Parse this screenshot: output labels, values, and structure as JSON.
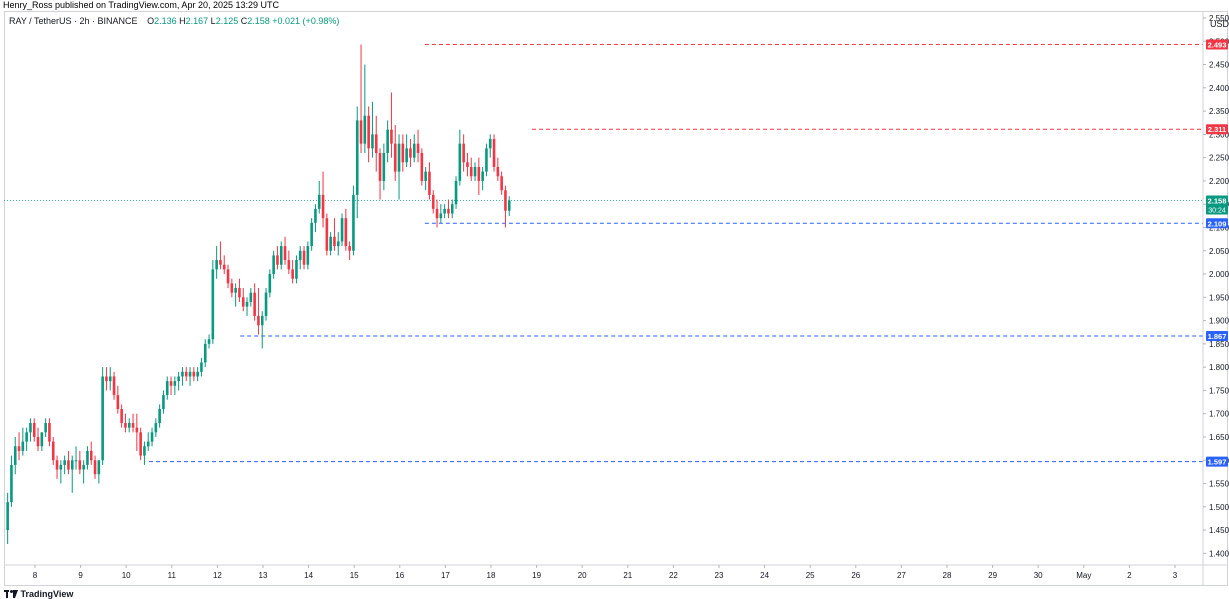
{
  "banner": {
    "text": "Henry_Ross published on TradingView.com, Apr 20, 2025 13:29 UTC"
  },
  "legend": {
    "symbol": "RAY / TetherUS · 2h · BINANCE",
    "o_label": "O",
    "o_value": "2.136",
    "h_label": "H",
    "h_value": "2.167",
    "l_label": "L",
    "l_value": "2.125",
    "c_label": "C",
    "c_value": "2.158",
    "change": "+0.021 (+0.98%)"
  },
  "price_scale": {
    "currency": "USDT"
  },
  "footer": {
    "brand": "TradingView",
    "logo_icon": "tradingview-logo-icon"
  },
  "colors": {
    "up": "#089981",
    "down": "#f23645",
    "support": "#2962ff",
    "resistance": "#f23645",
    "grid": "#d0d3da"
  },
  "chart_data": {
    "type": "candlestick",
    "title": "RAY / TetherUS · 2h · BINANCE",
    "ylim": [
      1.375,
      2.565
    ],
    "yticks": [
      "1.400",
      "1.450",
      "1.500",
      "1.550",
      "1.600",
      "1.650",
      "1.700",
      "1.750",
      "1.800",
      "1.850",
      "1.900",
      "1.950",
      "2.000",
      "2.050",
      "2.100",
      "2.150",
      "2.200",
      "2.250",
      "2.300",
      "2.350",
      "2.400",
      "2.450",
      "2.500",
      "2.550"
    ],
    "xticks": [
      {
        "label": "8",
        "day": 8
      },
      {
        "label": "9",
        "day": 9
      },
      {
        "label": "10",
        "day": 10
      },
      {
        "label": "11",
        "day": 11
      },
      {
        "label": "12",
        "day": 12
      },
      {
        "label": "13",
        "day": 13
      },
      {
        "label": "14",
        "day": 14
      },
      {
        "label": "15",
        "day": 15
      },
      {
        "label": "16",
        "day": 16
      },
      {
        "label": "17",
        "day": 17
      },
      {
        "label": "18",
        "day": 18
      },
      {
        "label": "19",
        "day": 19
      },
      {
        "label": "20",
        "day": 20
      },
      {
        "label": "21",
        "day": 21
      },
      {
        "label": "22",
        "day": 22
      },
      {
        "label": "23",
        "day": 23
      },
      {
        "label": "24",
        "day": 24
      },
      {
        "label": "25",
        "day": 25
      },
      {
        "label": "26",
        "day": 26
      },
      {
        "label": "27",
        "day": 27
      },
      {
        "label": "28",
        "day": 28
      },
      {
        "label": "29",
        "day": 29
      },
      {
        "label": "30",
        "day": 30
      },
      {
        "label": "May",
        "day": 31
      },
      {
        "label": "2",
        "day": 32
      },
      {
        "label": "3",
        "day": 33
      }
    ],
    "horizontal_lines": [
      {
        "price": 2.493,
        "label": "2.493",
        "kind": "resistance",
        "start_day": 16.55
      },
      {
        "price": 2.311,
        "label": "2.311",
        "kind": "resistance",
        "start_day": 18.9
      },
      {
        "price": 2.109,
        "label": "2.109",
        "kind": "support",
        "start_day": 16.55
      },
      {
        "price": 1.867,
        "label": "1.867",
        "kind": "support",
        "start_day": 12.5
      },
      {
        "price": 1.597,
        "label": "1.597",
        "kind": "support",
        "start_day": 10.5
      }
    ],
    "current_price": {
      "price": 2.158,
      "label": "2.158",
      "countdown": "30:24"
    },
    "candles": [
      {
        "o": 1.45,
        "h": 1.53,
        "l": 1.42,
        "c": 1.51
      },
      {
        "o": 1.51,
        "h": 1.61,
        "l": 1.5,
        "c": 1.59
      },
      {
        "o": 1.59,
        "h": 1.65,
        "l": 1.57,
        "c": 1.63
      },
      {
        "o": 1.63,
        "h": 1.66,
        "l": 1.6,
        "c": 1.62
      },
      {
        "o": 1.62,
        "h": 1.67,
        "l": 1.61,
        "c": 1.64
      },
      {
        "o": 1.64,
        "h": 1.67,
        "l": 1.62,
        "c": 1.66
      },
      {
        "o": 1.66,
        "h": 1.69,
        "l": 1.64,
        "c": 1.68
      },
      {
        "o": 1.68,
        "h": 1.69,
        "l": 1.64,
        "c": 1.65
      },
      {
        "o": 1.65,
        "h": 1.67,
        "l": 1.62,
        "c": 1.63
      },
      {
        "o": 1.63,
        "h": 1.66,
        "l": 1.62,
        "c": 1.66
      },
      {
        "o": 1.66,
        "h": 1.69,
        "l": 1.65,
        "c": 1.68
      },
      {
        "o": 1.68,
        "h": 1.69,
        "l": 1.63,
        "c": 1.64
      },
      {
        "o": 1.64,
        "h": 1.65,
        "l": 1.59,
        "c": 1.6
      },
      {
        "o": 1.6,
        "h": 1.61,
        "l": 1.56,
        "c": 1.58
      },
      {
        "o": 1.58,
        "h": 1.6,
        "l": 1.55,
        "c": 1.59
      },
      {
        "o": 1.59,
        "h": 1.61,
        "l": 1.57,
        "c": 1.6
      },
      {
        "o": 1.6,
        "h": 1.62,
        "l": 1.57,
        "c": 1.58
      },
      {
        "o": 1.58,
        "h": 1.61,
        "l": 1.53,
        "c": 1.6
      },
      {
        "o": 1.6,
        "h": 1.63,
        "l": 1.58,
        "c": 1.6
      },
      {
        "o": 1.6,
        "h": 1.62,
        "l": 1.57,
        "c": 1.58
      },
      {
        "o": 1.58,
        "h": 1.6,
        "l": 1.55,
        "c": 1.59
      },
      {
        "o": 1.59,
        "h": 1.63,
        "l": 1.58,
        "c": 1.62
      },
      {
        "o": 1.62,
        "h": 1.64,
        "l": 1.59,
        "c": 1.6
      },
      {
        "o": 1.6,
        "h": 1.61,
        "l": 1.56,
        "c": 1.57
      },
      {
        "o": 1.57,
        "h": 1.6,
        "l": 1.55,
        "c": 1.6
      },
      {
        "o": 1.6,
        "h": 1.8,
        "l": 1.59,
        "c": 1.78
      },
      {
        "o": 1.78,
        "h": 1.8,
        "l": 1.75,
        "c": 1.77
      },
      {
        "o": 1.77,
        "h": 1.8,
        "l": 1.75,
        "c": 1.78
      },
      {
        "o": 1.78,
        "h": 1.79,
        "l": 1.73,
        "c": 1.74
      },
      {
        "o": 1.74,
        "h": 1.76,
        "l": 1.7,
        "c": 1.71
      },
      {
        "o": 1.71,
        "h": 1.72,
        "l": 1.67,
        "c": 1.68
      },
      {
        "o": 1.68,
        "h": 1.7,
        "l": 1.66,
        "c": 1.67
      },
      {
        "o": 1.67,
        "h": 1.69,
        "l": 1.66,
        "c": 1.68
      },
      {
        "o": 1.68,
        "h": 1.7,
        "l": 1.66,
        "c": 1.67
      },
      {
        "o": 1.67,
        "h": 1.7,
        "l": 1.62,
        "c": 1.66
      },
      {
        "o": 1.66,
        "h": 1.67,
        "l": 1.6,
        "c": 1.61
      },
      {
        "o": 1.61,
        "h": 1.64,
        "l": 1.59,
        "c": 1.63
      },
      {
        "o": 1.63,
        "h": 1.66,
        "l": 1.62,
        "c": 1.64
      },
      {
        "o": 1.64,
        "h": 1.67,
        "l": 1.63,
        "c": 1.66
      },
      {
        "o": 1.66,
        "h": 1.69,
        "l": 1.65,
        "c": 1.68
      },
      {
        "o": 1.68,
        "h": 1.72,
        "l": 1.67,
        "c": 1.71
      },
      {
        "o": 1.71,
        "h": 1.75,
        "l": 1.7,
        "c": 1.74
      },
      {
        "o": 1.74,
        "h": 1.78,
        "l": 1.73,
        "c": 1.77
      },
      {
        "o": 1.77,
        "h": 1.78,
        "l": 1.74,
        "c": 1.76
      },
      {
        "o": 1.76,
        "h": 1.78,
        "l": 1.74,
        "c": 1.77
      },
      {
        "o": 1.77,
        "h": 1.79,
        "l": 1.75,
        "c": 1.78
      },
      {
        "o": 1.78,
        "h": 1.8,
        "l": 1.76,
        "c": 1.79
      },
      {
        "o": 1.79,
        "h": 1.8,
        "l": 1.77,
        "c": 1.78
      },
      {
        "o": 1.78,
        "h": 1.8,
        "l": 1.76,
        "c": 1.79
      },
      {
        "o": 1.79,
        "h": 1.8,
        "l": 1.77,
        "c": 1.78
      },
      {
        "o": 1.78,
        "h": 1.8,
        "l": 1.77,
        "c": 1.79
      },
      {
        "o": 1.79,
        "h": 1.82,
        "l": 1.78,
        "c": 1.81
      },
      {
        "o": 1.81,
        "h": 1.86,
        "l": 1.8,
        "c": 1.85
      },
      {
        "o": 1.85,
        "h": 1.87,
        "l": 1.84,
        "c": 1.86
      },
      {
        "o": 1.86,
        "h": 2.03,
        "l": 1.85,
        "c": 2.01
      },
      {
        "o": 2.01,
        "h": 2.06,
        "l": 1.99,
        "c": 2.03
      },
      {
        "o": 2.03,
        "h": 2.07,
        "l": 2.01,
        "c": 2.02
      },
      {
        "o": 2.02,
        "h": 2.04,
        "l": 2,
        "c": 2.01
      },
      {
        "o": 2.01,
        "h": 2.02,
        "l": 1.97,
        "c": 1.98
      },
      {
        "o": 1.98,
        "h": 1.99,
        "l": 1.95,
        "c": 1.96
      },
      {
        "o": 1.96,
        "h": 1.98,
        "l": 1.93,
        "c": 1.97
      },
      {
        "o": 1.97,
        "h": 1.99,
        "l": 1.94,
        "c": 1.95
      },
      {
        "o": 1.95,
        "h": 1.97,
        "l": 1.92,
        "c": 1.93
      },
      {
        "o": 1.93,
        "h": 1.95,
        "l": 1.91,
        "c": 1.94
      },
      {
        "o": 1.94,
        "h": 1.97,
        "l": 1.93,
        "c": 1.96
      },
      {
        "o": 1.96,
        "h": 1.98,
        "l": 1.9,
        "c": 1.91
      },
      {
        "o": 1.91,
        "h": 1.97,
        "l": 1.87,
        "c": 1.89
      },
      {
        "o": 1.89,
        "h": 1.92,
        "l": 1.84,
        "c": 1.91
      },
      {
        "o": 1.91,
        "h": 1.97,
        "l": 1.9,
        "c": 1.96
      },
      {
        "o": 1.96,
        "h": 2.01,
        "l": 1.95,
        "c": 2
      },
      {
        "o": 2,
        "h": 2.05,
        "l": 1.99,
        "c": 2.04
      },
      {
        "o": 2.04,
        "h": 2.06,
        "l": 2.01,
        "c": 2.02
      },
      {
        "o": 2.02,
        "h": 2.07,
        "l": 2.01,
        "c": 2.06
      },
      {
        "o": 2.06,
        "h": 2.08,
        "l": 2.02,
        "c": 2.03
      },
      {
        "o": 2.03,
        "h": 2.05,
        "l": 2,
        "c": 2.01
      },
      {
        "o": 2.01,
        "h": 2.03,
        "l": 1.98,
        "c": 1.99
      },
      {
        "o": 1.99,
        "h": 2.04,
        "l": 1.98,
        "c": 2.03
      },
      {
        "o": 2.03,
        "h": 2.06,
        "l": 2.01,
        "c": 2.05
      },
      {
        "o": 2.05,
        "h": 2.06,
        "l": 2.01,
        "c": 2.02
      },
      {
        "o": 2.02,
        "h": 2.07,
        "l": 2.01,
        "c": 2.06
      },
      {
        "o": 2.06,
        "h": 2.12,
        "l": 2.05,
        "c": 2.11
      },
      {
        "o": 2.11,
        "h": 2.15,
        "l": 2.09,
        "c": 2.14
      },
      {
        "o": 2.14,
        "h": 2.2,
        "l": 2.13,
        "c": 2.17
      },
      {
        "o": 2.17,
        "h": 2.22,
        "l": 2.1,
        "c": 2.12
      },
      {
        "o": 2.12,
        "h": 2.13,
        "l": 2.04,
        "c": 2.05
      },
      {
        "o": 2.05,
        "h": 2.09,
        "l": 2.04,
        "c": 2.08
      },
      {
        "o": 2.08,
        "h": 2.12,
        "l": 2.05,
        "c": 2.06
      },
      {
        "o": 2.06,
        "h": 2.09,
        "l": 2.04,
        "c": 2.07
      },
      {
        "o": 2.07,
        "h": 2.13,
        "l": 2.06,
        "c": 2.12
      },
      {
        "o": 2.12,
        "h": 2.14,
        "l": 2.05,
        "c": 2.06
      },
      {
        "o": 2.06,
        "h": 2.07,
        "l": 2.03,
        "c": 2.05
      },
      {
        "o": 2.05,
        "h": 2.19,
        "l": 2.04,
        "c": 2.17
      },
      {
        "o": 2.17,
        "h": 2.36,
        "l": 2.12,
        "c": 2.33
      },
      {
        "o": 2.33,
        "h": 2.493,
        "l": 2.26,
        "c": 2.28
      },
      {
        "o": 2.28,
        "h": 2.45,
        "l": 2.26,
        "c": 2.34
      },
      {
        "o": 2.34,
        "h": 2.36,
        "l": 2.24,
        "c": 2.27
      },
      {
        "o": 2.27,
        "h": 2.37,
        "l": 2.25,
        "c": 2.3
      },
      {
        "o": 2.3,
        "h": 2.34,
        "l": 2.22,
        "c": 2.26
      },
      {
        "o": 2.26,
        "h": 2.27,
        "l": 2.16,
        "c": 2.2
      },
      {
        "o": 2.2,
        "h": 2.28,
        "l": 2.18,
        "c": 2.26
      },
      {
        "o": 2.26,
        "h": 2.33,
        "l": 2.24,
        "c": 2.31
      },
      {
        "o": 2.31,
        "h": 2.39,
        "l": 2.25,
        "c": 2.28
      },
      {
        "o": 2.28,
        "h": 2.32,
        "l": 2.2,
        "c": 2.22
      },
      {
        "o": 2.22,
        "h": 2.3,
        "l": 2.16,
        "c": 2.28
      },
      {
        "o": 2.28,
        "h": 2.3,
        "l": 2.22,
        "c": 2.24
      },
      {
        "o": 2.24,
        "h": 2.3,
        "l": 2.23,
        "c": 2.27
      },
      {
        "o": 2.27,
        "h": 2.29,
        "l": 2.23,
        "c": 2.25
      },
      {
        "o": 2.25,
        "h": 2.3,
        "l": 2.24,
        "c": 2.28
      },
      {
        "o": 2.28,
        "h": 2.31,
        "l": 2.24,
        "c": 2.26
      },
      {
        "o": 2.26,
        "h": 2.27,
        "l": 2.19,
        "c": 2.2
      },
      {
        "o": 2.2,
        "h": 2.23,
        "l": 2.18,
        "c": 2.22
      },
      {
        "o": 2.22,
        "h": 2.24,
        "l": 2.16,
        "c": 2.17
      },
      {
        "o": 2.17,
        "h": 2.18,
        "l": 2.13,
        "c": 2.14
      },
      {
        "o": 2.14,
        "h": 2.16,
        "l": 2.1,
        "c": 2.12
      },
      {
        "o": 2.12,
        "h": 2.15,
        "l": 2.11,
        "c": 2.13
      },
      {
        "o": 2.13,
        "h": 2.15,
        "l": 2.12,
        "c": 2.14
      },
      {
        "o": 2.14,
        "h": 2.16,
        "l": 2.12,
        "c": 2.13
      },
      {
        "o": 2.13,
        "h": 2.16,
        "l": 2.12,
        "c": 2.15
      },
      {
        "o": 2.15,
        "h": 2.21,
        "l": 2.14,
        "c": 2.2
      },
      {
        "o": 2.2,
        "h": 2.31,
        "l": 2.19,
        "c": 2.28
      },
      {
        "o": 2.28,
        "h": 2.3,
        "l": 2.22,
        "c": 2.24
      },
      {
        "o": 2.24,
        "h": 2.26,
        "l": 2.21,
        "c": 2.23
      },
      {
        "o": 2.23,
        "h": 2.25,
        "l": 2.2,
        "c": 2.21
      },
      {
        "o": 2.21,
        "h": 2.24,
        "l": 2.2,
        "c": 2.23
      },
      {
        "o": 2.23,
        "h": 2.25,
        "l": 2.17,
        "c": 2.2
      },
      {
        "o": 2.2,
        "h": 2.23,
        "l": 2.18,
        "c": 2.22
      },
      {
        "o": 2.22,
        "h": 2.28,
        "l": 2.21,
        "c": 2.27
      },
      {
        "o": 2.27,
        "h": 2.3,
        "l": 2.25,
        "c": 2.29
      },
      {
        "o": 2.29,
        "h": 2.3,
        "l": 2.22,
        "c": 2.23
      },
      {
        "o": 2.23,
        "h": 2.25,
        "l": 2.2,
        "c": 2.21
      },
      {
        "o": 2.21,
        "h": 2.22,
        "l": 2.17,
        "c": 2.18
      },
      {
        "o": 2.18,
        "h": 2.19,
        "l": 2.1,
        "c": 2.136
      },
      {
        "o": 2.136,
        "h": 2.167,
        "l": 2.125,
        "c": 2.158
      }
    ]
  }
}
